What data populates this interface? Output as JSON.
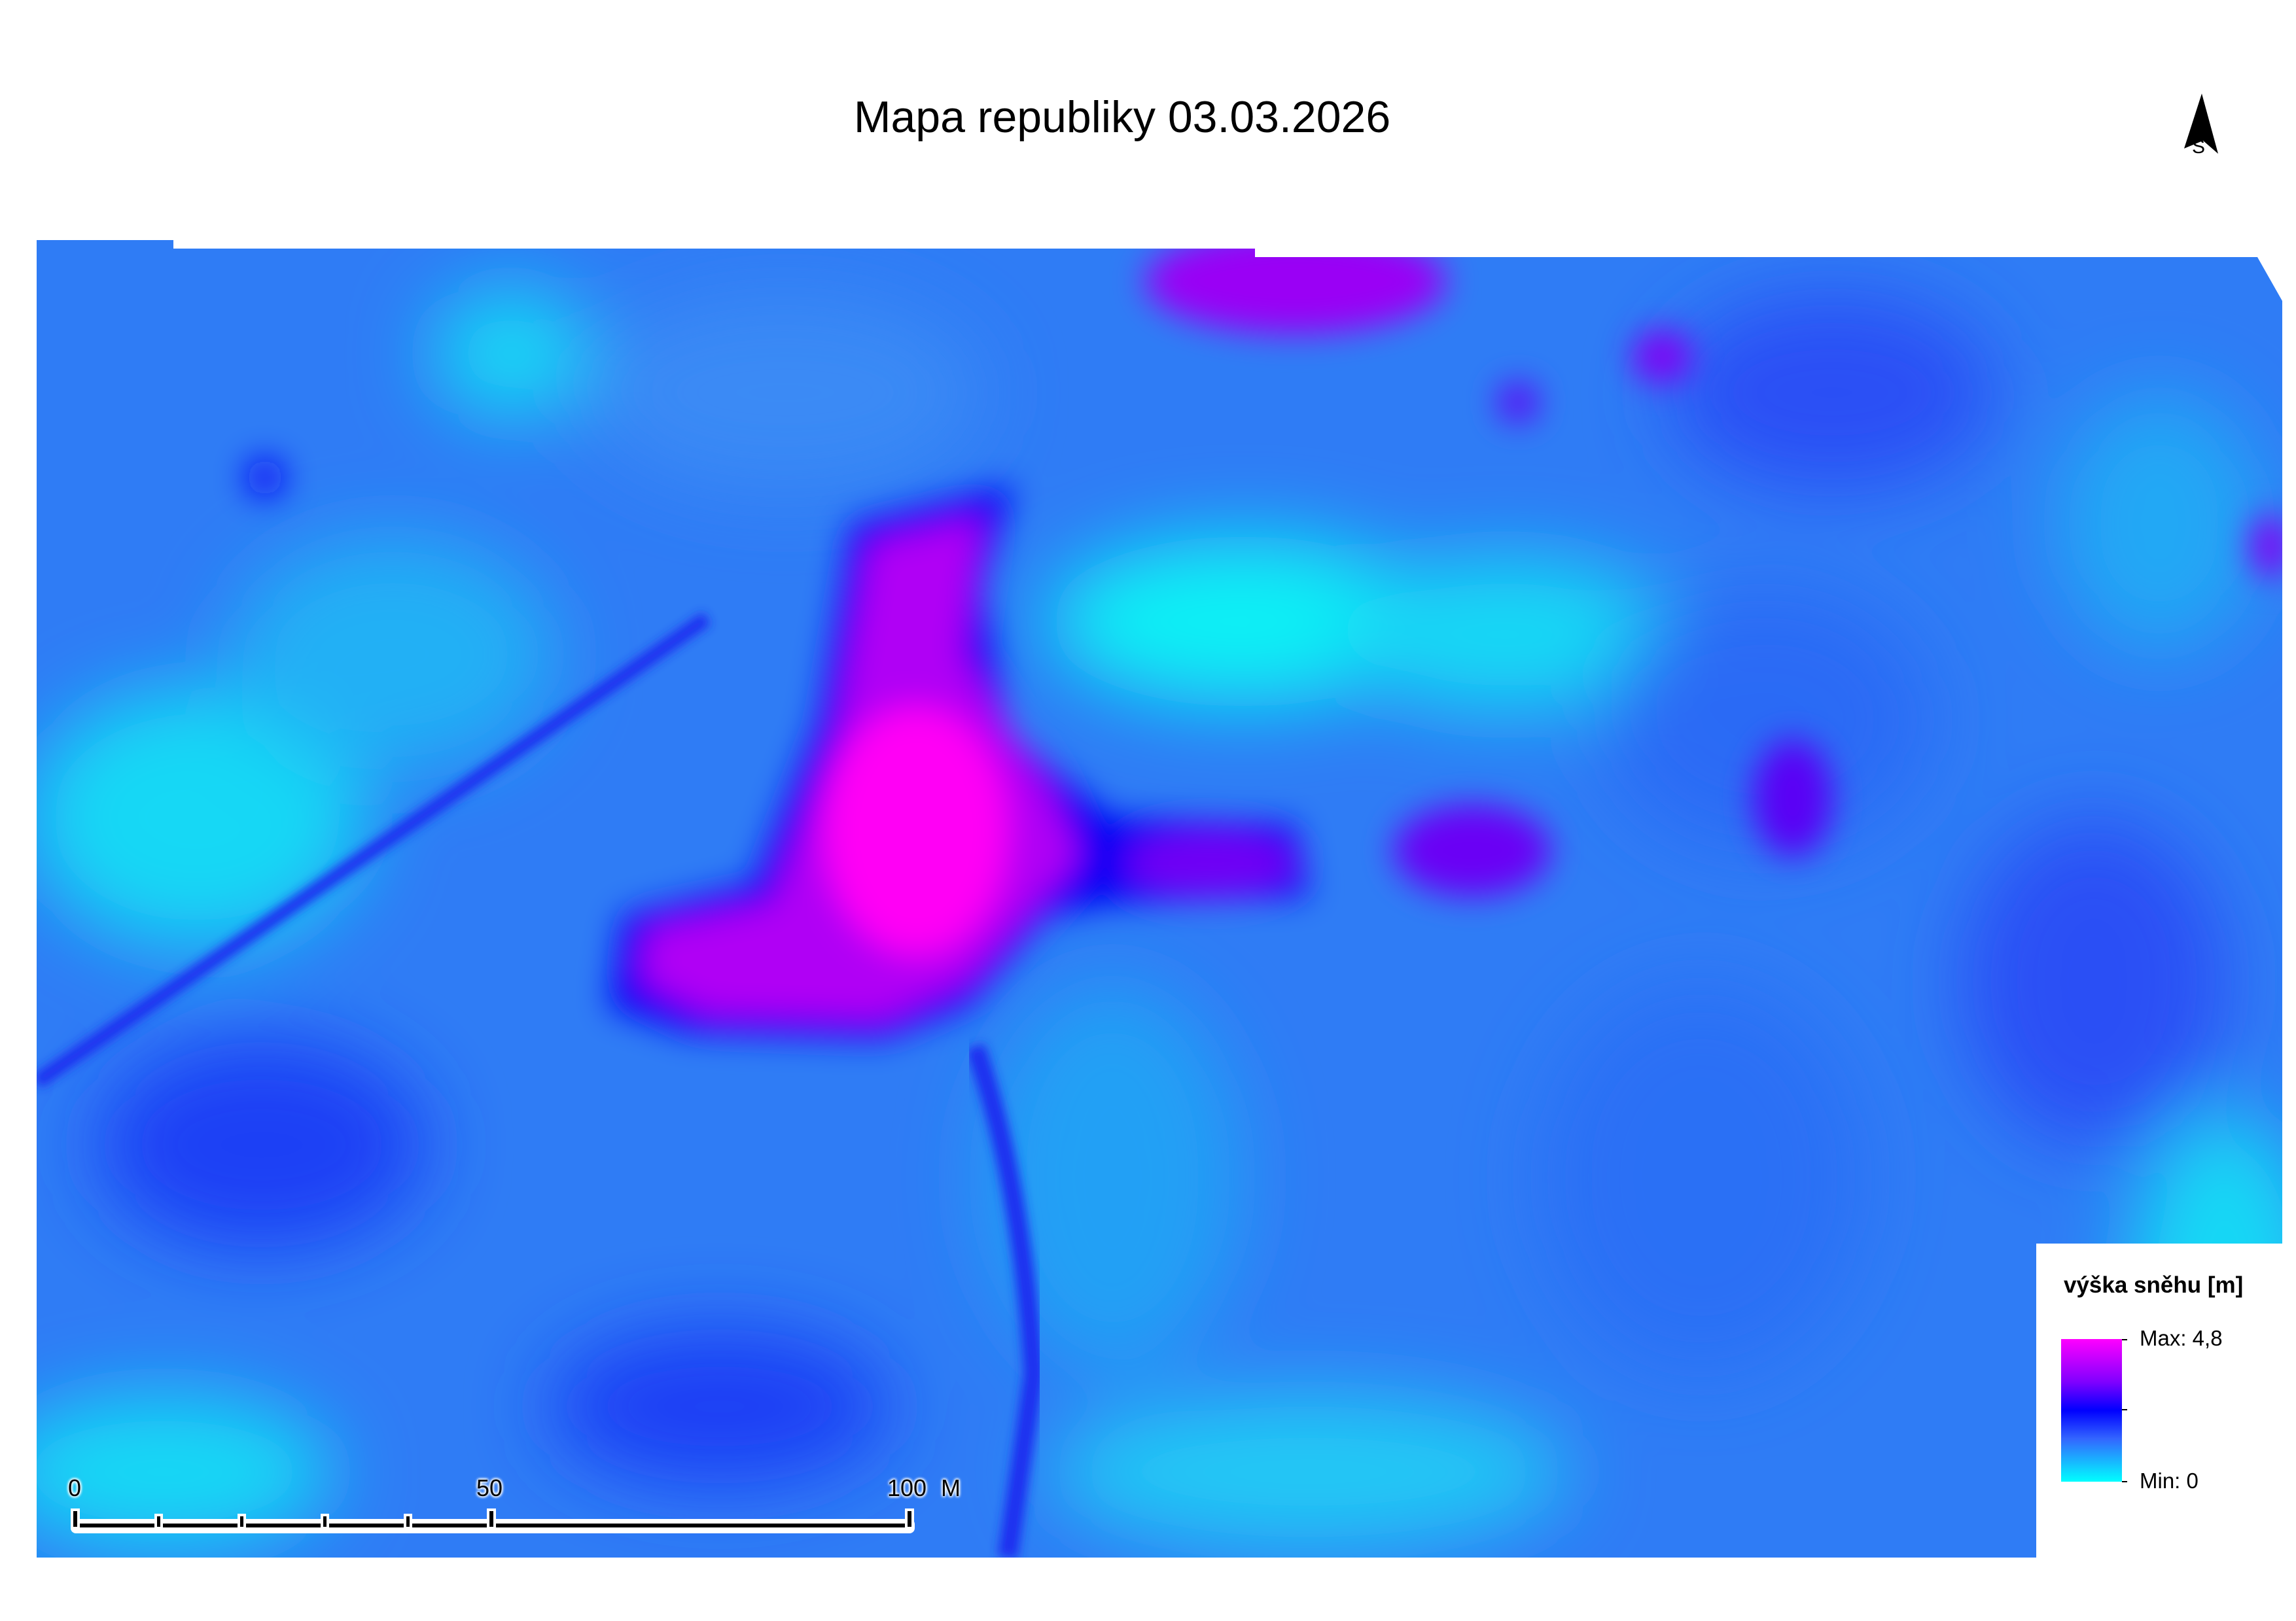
{
  "title": "Mapa republiky 03.03.2026",
  "north_arrow": {
    "icon": "north-arrow-icon",
    "label": "S"
  },
  "legend": {
    "title": "výška sněhu [m]",
    "max_label": "Max: 4,8",
    "min_label": "Min: 0",
    "max_value": 4.8,
    "min_value": 0,
    "colors": [
      "#ff00ff",
      "#0000ff",
      "#00ffff"
    ]
  },
  "scale_bar": {
    "labels": [
      "0",
      "50",
      "100"
    ],
    "unit": "M"
  }
}
